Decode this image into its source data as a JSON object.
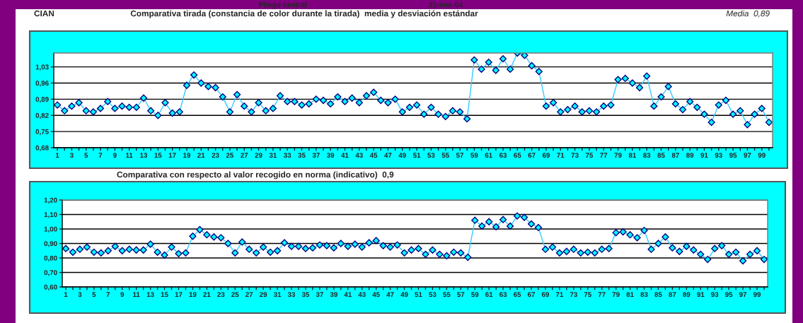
{
  "chart_data": [
    {
      "type": "line",
      "title": "Comparativa tirada (constancia de color durante la tirada)  media y desviación estándar",
      "annotations": [
        "Pliego central",
        "21-ene-04",
        "CIAN",
        "Media  0,89"
      ],
      "categories": [
        "1",
        null,
        "3",
        null,
        "5",
        null,
        "7",
        null,
        "9",
        null,
        "11",
        null,
        "13",
        null,
        "15",
        null,
        "17",
        null,
        "19",
        null,
        "21",
        null,
        "23",
        null,
        "25",
        null,
        "27",
        null,
        "29",
        null,
        "31",
        null,
        "33",
        null,
        "35",
        null,
        "37",
        null,
        "39",
        null,
        "41",
        null,
        "43",
        null,
        "45",
        null,
        "47",
        null,
        "49",
        null,
        "51",
        null,
        "53",
        null,
        "55",
        null,
        "57",
        null,
        "59",
        null,
        "61",
        null,
        "63",
        null,
        "65",
        null,
        "67",
        null,
        "69",
        null,
        "71",
        null,
        "73",
        null,
        "75",
        null,
        "77",
        null,
        "79",
        null,
        "81",
        null,
        "83",
        null,
        "85",
        null,
        "87",
        null,
        "89",
        null,
        "91",
        null,
        "93",
        null,
        "95",
        null,
        "97",
        null,
        "99",
        null
      ],
      "series": [
        {
          "color": "#33ccff",
          "values": [
            0.865,
            0.84,
            0.86,
            0.875,
            0.84,
            0.835,
            0.85,
            0.88,
            0.85,
            0.86,
            0.855,
            0.855,
            0.895,
            0.84,
            0.82,
            0.875,
            0.83,
            0.835,
            0.95,
            0.995,
            0.96,
            0.945,
            0.94,
            0.9,
            0.835,
            0.91,
            0.86,
            0.835,
            0.875,
            0.84,
            0.85,
            0.905,
            0.88,
            0.88,
            0.865,
            0.87,
            0.89,
            0.885,
            0.87,
            0.9,
            0.88,
            0.895,
            0.875,
            0.905,
            0.92,
            0.885,
            0.875,
            0.89,
            0.835,
            0.855,
            0.865,
            0.825,
            0.855,
            0.825,
            0.815,
            0.84,
            0.835,
            0.805,
            1.06,
            1.02,
            1.05,
            1.015,
            1.065,
            1.02,
            1.09,
            1.08,
            1.035,
            1.01,
            0.86,
            0.875,
            0.835,
            0.845,
            0.86,
            0.835,
            0.84,
            0.835,
            0.86,
            0.865,
            0.975,
            0.98,
            0.96,
            0.94,
            0.99,
            0.86,
            0.9,
            0.945,
            0.87,
            0.845,
            0.88,
            0.855,
            0.825,
            0.79,
            0.865,
            0.885,
            0.825,
            0.84,
            0.78,
            0.825,
            0.85,
            0.79
          ]
        }
      ],
      "ylim": [
        0.68,
        1.09
      ],
      "yticks": [
        {
          "value": 0.68,
          "label": "0,68"
        },
        {
          "value": 0.75,
          "label": "0,75"
        },
        {
          "value": 0.82,
          "label": "0,82"
        },
        {
          "value": 0.89,
          "label": "0,89"
        },
        {
          "value": 0.96,
          "label": "0,96"
        },
        {
          "value": 1.03,
          "label": "1,03"
        }
      ],
      "grid": "y",
      "marker": "diamond",
      "line_style": "solid"
    },
    {
      "type": "line",
      "title": "Comparativa con respecto al valor recogido en norma (indicativo)  0,9",
      "categories": [
        "1",
        null,
        "3",
        null,
        "5",
        null,
        "7",
        null,
        "9",
        null,
        "11",
        null,
        "13",
        null,
        "15",
        null,
        "17",
        null,
        "19",
        null,
        "21",
        null,
        "23",
        null,
        "25",
        null,
        "27",
        null,
        "29",
        null,
        "31",
        null,
        "33",
        null,
        "35",
        null,
        "37",
        null,
        "39",
        null,
        "41",
        null,
        "43",
        null,
        "45",
        null,
        "47",
        null,
        "49",
        null,
        "51",
        null,
        "53",
        null,
        "55",
        null,
        "57",
        null,
        "59",
        null,
        "61",
        null,
        "63",
        null,
        "65",
        null,
        "67",
        null,
        "69",
        null,
        "71",
        null,
        "73",
        null,
        "75",
        null,
        "77",
        null,
        "79",
        null,
        "81",
        null,
        "83",
        null,
        "85",
        null,
        "87",
        null,
        "89",
        null,
        "91",
        null,
        "93",
        null,
        "95",
        null,
        "97",
        null,
        "99",
        null
      ],
      "series": [
        {
          "color": "#33ccff",
          "values": [
            0.865,
            0.84,
            0.86,
            0.875,
            0.84,
            0.835,
            0.85,
            0.88,
            0.85,
            0.86,
            0.855,
            0.855,
            0.895,
            0.84,
            0.82,
            0.875,
            0.83,
            0.835,
            0.95,
            0.995,
            0.96,
            0.945,
            0.94,
            0.9,
            0.835,
            0.91,
            0.86,
            0.835,
            0.875,
            0.84,
            0.85,
            0.905,
            0.88,
            0.88,
            0.865,
            0.87,
            0.89,
            0.885,
            0.87,
            0.9,
            0.88,
            0.895,
            0.875,
            0.905,
            0.92,
            0.885,
            0.875,
            0.89,
            0.835,
            0.855,
            0.865,
            0.825,
            0.855,
            0.825,
            0.815,
            0.84,
            0.835,
            0.805,
            1.06,
            1.02,
            1.05,
            1.015,
            1.065,
            1.02,
            1.09,
            1.08,
            1.035,
            1.01,
            0.86,
            0.875,
            0.835,
            0.845,
            0.86,
            0.835,
            0.84,
            0.835,
            0.86,
            0.865,
            0.975,
            0.98,
            0.96,
            0.94,
            0.99,
            0.86,
            0.9,
            0.945,
            0.87,
            0.845,
            0.88,
            0.855,
            0.825,
            0.79,
            0.865,
            0.885,
            0.825,
            0.84,
            0.78,
            0.825,
            0.85,
            0.79
          ]
        }
      ],
      "ylim": [
        0.6,
        1.2
      ],
      "yticks": [
        {
          "value": 0.6,
          "label": "0,60"
        },
        {
          "value": 0.7,
          "label": "0,70"
        },
        {
          "value": 0.8,
          "label": "0,80"
        },
        {
          "value": 0.9,
          "label": "0,90"
        },
        {
          "value": 1.0,
          "label": "1,00"
        },
        {
          "value": 1.1,
          "label": "1,10"
        },
        {
          "value": 1.2,
          "label": "1,20"
        }
      ],
      "grid": "y",
      "marker": "diamond",
      "line_style": "solid"
    }
  ]
}
